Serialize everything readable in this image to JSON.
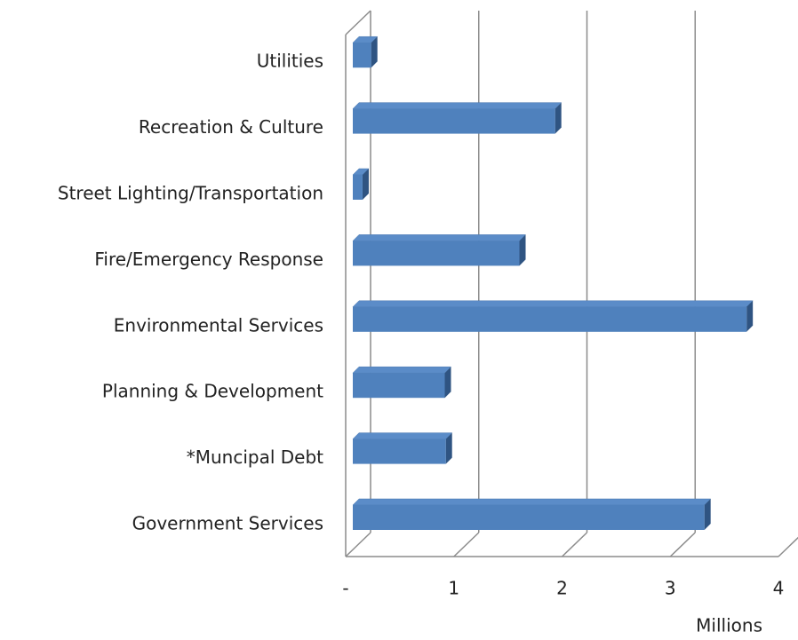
{
  "chart_data": {
    "type": "bar3d_horizontal",
    "categories": [
      "Government Services",
      "*Muncipal Debt",
      "Planning & Development",
      "Environmental Services",
      "Fire/Emergency Response",
      "Street Lighting/Transportation",
      "Recreation & Culture",
      "Utilities"
    ],
    "values": [
      3.25,
      0.86,
      0.85,
      3.64,
      1.54,
      0.09,
      1.87,
      0.17
    ],
    "color": "#4f81bd",
    "xlim": [
      0,
      4
    ],
    "xticks": [
      {
        "value": 0,
        "label": "-"
      },
      1,
      2,
      3,
      4
    ],
    "x_axis_label": "Millions",
    "grid": true
  }
}
